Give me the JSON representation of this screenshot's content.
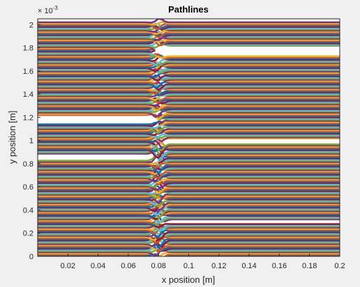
{
  "chart_data": {
    "type": "line",
    "title": "Pathlines",
    "xlabel": "x position [m]",
    "ylabel": "y position [m]",
    "y_exponent_label": "× 10",
    "y_exponent_power": "-3",
    "xlim": [
      0,
      0.2
    ],
    "ylim": [
      0,
      0.00205
    ],
    "x_ticks": [
      0.02,
      0.04,
      0.06,
      0.08,
      0.1,
      0.12,
      0.14,
      0.16,
      0.18,
      0.2
    ],
    "x_tick_labels": [
      "0.02",
      "0.04",
      "0.06",
      "0.08",
      "0.1",
      "0.12",
      "0.14",
      "0.16",
      "0.18",
      "0.2"
    ],
    "y_ticks": [
      0,
      0.0002,
      0.0004,
      0.0006,
      0.0008,
      0.001,
      0.0012,
      0.0014,
      0.0016,
      0.0018,
      0.002
    ],
    "y_tick_labels": [
      "0",
      "0.2",
      "0.4",
      "0.6",
      "0.8",
      "1",
      "1.2",
      "1.4",
      "1.6",
      "1.8",
      "2"
    ],
    "grid": false,
    "legend": false,
    "colors": [
      "#0072BD",
      "#D95319",
      "#EDB120",
      "#7E2F8E",
      "#77AC30",
      "#4DBEEE",
      "#A2142F"
    ],
    "pathlines": {
      "count": 200,
      "y_start": 5e-06,
      "y_end": 0.00202,
      "x_start": 0,
      "x_end": 0.2,
      "constriction_x": 0.08,
      "gaps_upstream": [
        [
          0.00114,
          0.00122
        ],
        [
          0.00083,
          0.00088
        ]
      ],
      "gaps_downstream": [
        [
          0.00173,
          0.00181
        ],
        [
          0.00097,
          0.00101
        ],
        [
          0.00028,
          0.00031
        ]
      ]
    }
  }
}
